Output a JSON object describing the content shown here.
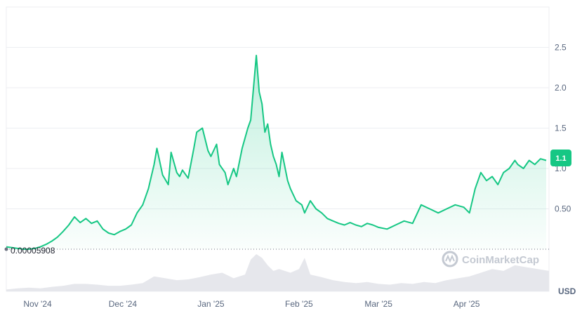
{
  "chart_data": {
    "type": "area",
    "currency_label": "USD",
    "watermark": "CoinMarketCap",
    "baseline_label": "0.00005908",
    "current_price_label": "1.1",
    "x_ticks": [
      "Nov '24",
      "Dec '24",
      "Jan '25",
      "Feb '25",
      "Mar '25",
      "Apr '25"
    ],
    "x_tick_dates": [
      "2024-11-01",
      "2024-12-01",
      "2025-01-01",
      "2025-02-01",
      "2025-03-01",
      "2025-04-01"
    ],
    "xlim": [
      "2024-10-21",
      "2025-04-30"
    ],
    "y_ticks": [
      "0.50",
      "1.0",
      "1.5",
      "2.0",
      "2.5"
    ],
    "y_tick_values": [
      0.5,
      1.0,
      1.5,
      2.0,
      2.5
    ],
    "ylim": [
      0,
      3.0
    ],
    "grid": true,
    "colors": {
      "line": "#16c784",
      "area_top": "#16c784",
      "volume": "#e6e7ec",
      "badge": "#16c784",
      "baseline": "#6b7280"
    },
    "series": [
      {
        "x": [
          "2024-10-21",
          "2024-10-23",
          "2024-10-25",
          "2024-10-27",
          "2024-10-29",
          "2024-10-31",
          "2024-11-02",
          "2024-11-04",
          "2024-11-06",
          "2024-11-08",
          "2024-11-10",
          "2024-11-12",
          "2024-11-14",
          "2024-11-16",
          "2024-11-18",
          "2024-11-20",
          "2024-11-22",
          "2024-11-24",
          "2024-11-26",
          "2024-11-28",
          "2024-11-30",
          "2024-12-02",
          "2024-12-04",
          "2024-12-06",
          "2024-12-08",
          "2024-12-10",
          "2024-12-12",
          "2024-12-13",
          "2024-12-15",
          "2024-12-17",
          "2024-12-18",
          "2024-12-20",
          "2024-12-21",
          "2024-12-22",
          "2024-12-24",
          "2024-12-26",
          "2024-12-27",
          "2024-12-29",
          "2024-12-31",
          "2025-01-01",
          "2025-01-03",
          "2025-01-04",
          "2025-01-06",
          "2025-01-07",
          "2025-01-09",
          "2025-01-10",
          "2025-01-12",
          "2025-01-14",
          "2025-01-15",
          "2025-01-17",
          "2025-01-18",
          "2025-01-19",
          "2025-01-20",
          "2025-01-21",
          "2025-01-22",
          "2025-01-23",
          "2025-01-24",
          "2025-01-25",
          "2025-01-26",
          "2025-01-28",
          "2025-01-29",
          "2025-01-31",
          "2025-02-02",
          "2025-02-03",
          "2025-02-05",
          "2025-02-07",
          "2025-02-09",
          "2025-02-11",
          "2025-02-13",
          "2025-02-15",
          "2025-02-17",
          "2025-02-19",
          "2025-02-21",
          "2025-02-23",
          "2025-02-25",
          "2025-02-27",
          "2025-03-01",
          "2025-03-04",
          "2025-03-07",
          "2025-03-10",
          "2025-03-13",
          "2025-03-16",
          "2025-03-19",
          "2025-03-22",
          "2025-03-25",
          "2025-03-28",
          "2025-03-31",
          "2025-04-02",
          "2025-04-04",
          "2025-04-06",
          "2025-04-08",
          "2025-04-10",
          "2025-04-12",
          "2025-04-14",
          "2025-04-16",
          "2025-04-18",
          "2025-04-19",
          "2025-04-21",
          "2025-04-23",
          "2025-04-25",
          "2025-04-27",
          "2025-04-29"
        ],
        "values": [
          0.03,
          0.02,
          0.01,
          0.0,
          0.0,
          0.01,
          0.03,
          0.06,
          0.1,
          0.15,
          0.22,
          0.3,
          0.4,
          0.33,
          0.38,
          0.32,
          0.35,
          0.25,
          0.2,
          0.18,
          0.22,
          0.25,
          0.3,
          0.45,
          0.55,
          0.75,
          1.05,
          1.25,
          0.92,
          0.8,
          1.2,
          0.95,
          0.9,
          0.98,
          0.88,
          1.25,
          1.45,
          1.5,
          1.22,
          1.15,
          1.3,
          1.05,
          0.95,
          0.8,
          1.0,
          0.9,
          1.25,
          1.5,
          1.6,
          2.4,
          1.95,
          1.8,
          1.45,
          1.55,
          1.3,
          1.15,
          1.05,
          0.9,
          1.2,
          0.85,
          0.75,
          0.6,
          0.55,
          0.45,
          0.6,
          0.5,
          0.45,
          0.38,
          0.35,
          0.32,
          0.3,
          0.33,
          0.3,
          0.28,
          0.32,
          0.3,
          0.27,
          0.25,
          0.3,
          0.35,
          0.32,
          0.55,
          0.5,
          0.45,
          0.5,
          0.55,
          0.52,
          0.45,
          0.75,
          0.95,
          0.85,
          0.9,
          0.8,
          0.95,
          1.0,
          1.1,
          1.05,
          1.0,
          1.1,
          1.05,
          1.12,
          1.1
        ]
      }
    ],
    "volume": {
      "x": [
        "2024-10-21",
        "2024-10-25",
        "2024-10-29",
        "2024-11-02",
        "2024-11-06",
        "2024-11-10",
        "2024-11-14",
        "2024-11-18",
        "2024-11-22",
        "2024-11-26",
        "2024-11-30",
        "2024-12-04",
        "2024-12-08",
        "2024-12-12",
        "2024-12-16",
        "2024-12-20",
        "2024-12-24",
        "2024-12-28",
        "2025-01-01",
        "2025-01-05",
        "2025-01-09",
        "2025-01-13",
        "2025-01-15",
        "2025-01-17",
        "2025-01-19",
        "2025-01-21",
        "2025-01-23",
        "2025-01-25",
        "2025-01-29",
        "2025-02-01",
        "2025-02-03",
        "2025-02-05",
        "2025-02-09",
        "2025-02-13",
        "2025-02-17",
        "2025-02-21",
        "2025-02-25",
        "2025-03-01",
        "2025-03-05",
        "2025-03-09",
        "2025-03-13",
        "2025-03-17",
        "2025-03-21",
        "2025-03-25",
        "2025-03-29",
        "2025-04-02",
        "2025-04-06",
        "2025-04-10",
        "2025-04-14",
        "2025-04-18",
        "2025-04-22",
        "2025-04-26",
        "2025-04-30"
      ],
      "values": [
        0.05,
        0.08,
        0.1,
        0.08,
        0.12,
        0.15,
        0.2,
        0.2,
        0.18,
        0.15,
        0.15,
        0.18,
        0.22,
        0.4,
        0.35,
        0.3,
        0.32,
        0.38,
        0.45,
        0.5,
        0.35,
        0.45,
        0.85,
        1.0,
        0.9,
        0.7,
        0.55,
        0.6,
        0.5,
        0.6,
        0.9,
        0.45,
        0.38,
        0.3,
        0.25,
        0.22,
        0.25,
        0.2,
        0.18,
        0.22,
        0.2,
        0.25,
        0.22,
        0.3,
        0.35,
        0.4,
        0.5,
        0.6,
        0.55,
        0.7,
        0.65,
        0.6,
        0.55
      ]
    }
  }
}
